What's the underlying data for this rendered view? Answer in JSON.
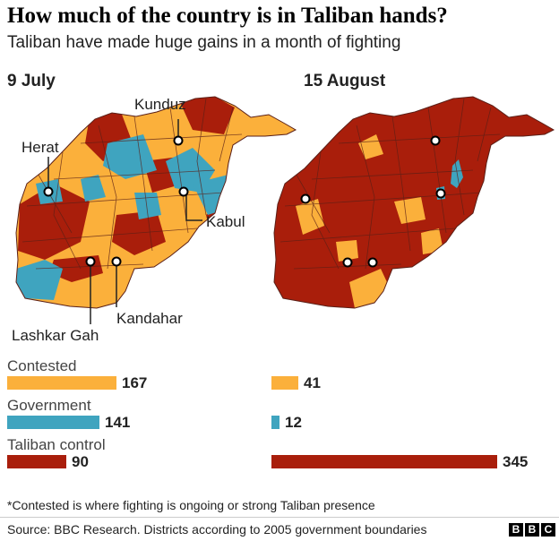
{
  "title": "How much of the country is in Taliban hands?",
  "subtitle": "Taliban have made huge gains in a month of fighting",
  "panels": [
    {
      "date": "9 July"
    },
    {
      "date": "15 August"
    }
  ],
  "cities": [
    "Kunduz",
    "Herat",
    "Kabul",
    "Lashkar Gah",
    "Kandahar"
  ],
  "colors": {
    "contested": "#fbb03b",
    "government": "#3fa4bf",
    "taliban": "#a91e0b",
    "borders": "#5a1f17"
  },
  "chart_data": {
    "type": "bar",
    "title": "How much of the country is in Taliban hands?",
    "subtitle": "Taliban have made huge gains in a month of fighting",
    "categories": [
      "Contested",
      "Government",
      "Taliban control"
    ],
    "series": [
      {
        "name": "9 July",
        "values": [
          167,
          141,
          90
        ]
      },
      {
        "name": "15 August",
        "values": [
          41,
          12,
          345
        ]
      }
    ],
    "unit": "districts"
  },
  "footnote": "*Contested is where fighting is ongoing or strong Taliban presence",
  "source": "Source: BBC Research. Districts according to 2005 government boundaries",
  "logo_letters": [
    "B",
    "B",
    "C"
  ]
}
